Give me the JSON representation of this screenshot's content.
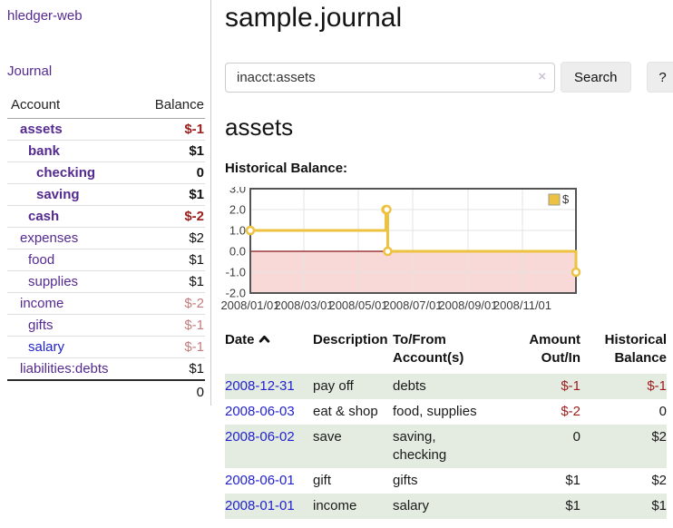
{
  "app": {
    "brand": "hledger-web",
    "nav_journal": "Journal"
  },
  "colors": {
    "link_purple": "#552a90",
    "link_blue": "#2222cc",
    "negative_strong": "#9d1d1d",
    "negative_soft": "#c47c7c",
    "row_green": "#e4ebe1",
    "chart_line_yellow": "#edc240",
    "chart_negative_region": "#f9d8d8",
    "chart_zero_line": "#8c1717",
    "chart_border": "#545454"
  },
  "sidebar": {
    "accounts_header": {
      "account": "Account",
      "balance": "Balance"
    },
    "accounts": [
      {
        "name": "assets",
        "balance": "$-1",
        "depth": 1,
        "emph": true,
        "link_color": "purple"
      },
      {
        "name": "bank",
        "balance": "$1",
        "depth": 2,
        "emph": true,
        "link_color": "purple"
      },
      {
        "name": "checking",
        "balance": "0",
        "depth": 3,
        "emph": true,
        "link_color": "purple"
      },
      {
        "name": "saving",
        "balance": "$1",
        "depth": 3,
        "emph": true,
        "link_color": "purple"
      },
      {
        "name": "cash",
        "balance": "$-2",
        "depth": 2,
        "emph": true,
        "link_color": "purple"
      },
      {
        "name": "expenses",
        "balance": "$2",
        "depth": 1,
        "emph": false,
        "link_color": "purple"
      },
      {
        "name": "food",
        "balance": "$1",
        "depth": 2,
        "emph": false,
        "link_color": "purple"
      },
      {
        "name": "supplies",
        "balance": "$1",
        "depth": 2,
        "emph": false,
        "link_color": "purple"
      },
      {
        "name": "income",
        "balance": "$-2",
        "depth": 1,
        "emph": false,
        "link_color": "purple"
      },
      {
        "name": "gifts",
        "balance": "$-1",
        "depth": 2,
        "emph": false,
        "link_color": "purple"
      },
      {
        "name": "salary",
        "balance": "$-1",
        "depth": 2,
        "emph": false,
        "link_color": "blue"
      },
      {
        "name": "liabilities:debts",
        "balance": "$1",
        "depth": 1,
        "emph": false,
        "link_color": "purple"
      }
    ],
    "total": "0"
  },
  "header": {
    "title": "sample.journal"
  },
  "search": {
    "query": "inacct:assets",
    "clear_label": "×",
    "button": "Search",
    "help_button": "?"
  },
  "register": {
    "heading": "assets",
    "chart_label": "Historical Balance:"
  },
  "chart_data": {
    "type": "line",
    "step": true,
    "title": "Historical Balance:",
    "xlabel": "",
    "ylabel": "",
    "ylim": [
      -2,
      3
    ],
    "x_range_days": [
      0,
      365
    ],
    "grid": true,
    "legend_position": "top-right",
    "series": [
      {
        "name": "$",
        "color": "#edc240",
        "points": [
          {
            "date": "2008-01-01",
            "day": 0,
            "value": 1
          },
          {
            "date": "2008-06-01",
            "day": 152,
            "value": 2
          },
          {
            "date": "2008-06-02",
            "day": 153,
            "value": 2
          },
          {
            "date": "2008-06-03",
            "day": 154,
            "value": 0
          },
          {
            "date": "2008-12-31",
            "day": 365,
            "value": -1
          }
        ]
      }
    ],
    "x_ticks": [
      {
        "day": 0,
        "label": "2008/01/01"
      },
      {
        "day": 60,
        "label": "2008/03/01"
      },
      {
        "day": 121,
        "label": "2008/05/01"
      },
      {
        "day": 182,
        "label": "2008/07/01"
      },
      {
        "day": 244,
        "label": "2008/09/01"
      },
      {
        "day": 305,
        "label": "2008/11/01"
      }
    ],
    "y_ticks": [
      {
        "value": 3,
        "label": "3.0"
      },
      {
        "value": 2,
        "label": "2.0"
      },
      {
        "value": 1,
        "label": "1.0"
      },
      {
        "value": 0,
        "label": "0.0"
      },
      {
        "value": -1,
        "label": "-1.0"
      },
      {
        "value": -2,
        "label": "-2.0"
      }
    ],
    "negative_region_color": "#f9d8d8",
    "zero_line_color": "#8c1717",
    "legend": {
      "label": "$"
    }
  },
  "transactions": {
    "headers": [
      "Date",
      "Description",
      "To/From Account(s)",
      "Amount Out/In",
      "Historical Balance"
    ],
    "rows": [
      {
        "date": "2008-12-31",
        "description": "pay off",
        "tofrom": "debts",
        "amount": "$-1",
        "balance": "$-1"
      },
      {
        "date": "2008-06-03",
        "description": "eat & shop",
        "tofrom": "food, supplies",
        "amount": "$-2",
        "balance": "0"
      },
      {
        "date": "2008-06-02",
        "description": "save",
        "tofrom": "saving, checking",
        "amount": "0",
        "balance": "$2"
      },
      {
        "date": "2008-06-01",
        "description": "gift",
        "tofrom": "gifts",
        "amount": "$1",
        "balance": "$2"
      },
      {
        "date": "2008-01-01",
        "description": "income",
        "tofrom": "salary",
        "amount": "$1",
        "balance": "$1"
      }
    ]
  }
}
